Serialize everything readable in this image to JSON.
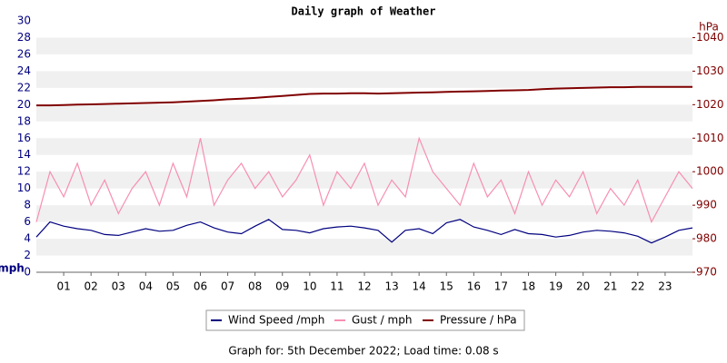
{
  "chart_data": {
    "type": "line",
    "title": "Daily graph of Weather",
    "footer": "Graph for: 5th December 2022; Load time: 0.08 s",
    "ylabel": "mph",
    "y2label": "hPa",
    "x": [
      0,
      0.5,
      1,
      1.5,
      2,
      2.5,
      3,
      3.5,
      4,
      4.5,
      5,
      5.5,
      6,
      6.5,
      7,
      7.5,
      8,
      8.5,
      9,
      9.5,
      10,
      10.5,
      11,
      11.5,
      12,
      12.5,
      13,
      13.5,
      14,
      14.5,
      15,
      15.5,
      16,
      16.5,
      17,
      17.5,
      18,
      18.5,
      19,
      19.5,
      20,
      20.5,
      21,
      21.5,
      22,
      22.5,
      23,
      23.5,
      24
    ],
    "xlim": [
      0,
      24
    ],
    "xticks": [
      {
        "value": 1,
        "label": "01"
      },
      {
        "value": 2,
        "label": "02"
      },
      {
        "value": 3,
        "label": "03"
      },
      {
        "value": 4,
        "label": "04"
      },
      {
        "value": 5,
        "label": "05"
      },
      {
        "value": 6,
        "label": "06"
      },
      {
        "value": 7,
        "label": "07"
      },
      {
        "value": 8,
        "label": "08"
      },
      {
        "value": 9,
        "label": "09"
      },
      {
        "value": 10,
        "label": "10"
      },
      {
        "value": 11,
        "label": "11"
      },
      {
        "value": 12,
        "label": "12"
      },
      {
        "value": 13,
        "label": "13"
      },
      {
        "value": 14,
        "label": "14"
      },
      {
        "value": 15,
        "label": "15"
      },
      {
        "value": 16,
        "label": "16"
      },
      {
        "value": 17,
        "label": "17"
      },
      {
        "value": 18,
        "label": "18"
      },
      {
        "value": 19,
        "label": "19"
      },
      {
        "value": 20,
        "label": "20"
      },
      {
        "value": 21,
        "label": "21"
      },
      {
        "value": 22,
        "label": "22"
      },
      {
        "value": 23,
        "label": "23"
      }
    ],
    "ylim": [
      0,
      30
    ],
    "yticks": [
      0,
      2,
      4,
      6,
      8,
      10,
      12,
      14,
      16,
      18,
      20,
      22,
      24,
      26,
      28,
      30
    ],
    "y2lim": [
      970,
      1045
    ],
    "y2ticks": [
      970,
      980,
      990,
      1000,
      1010,
      1020,
      1030,
      1040
    ],
    "grid": true,
    "series": [
      {
        "name": "Gust / mph",
        "color": "#f78fb0",
        "values": [
          6,
          12,
          9,
          13,
          8,
          11,
          7,
          10,
          12,
          8,
          13,
          9,
          16,
          8,
          11,
          13,
          10,
          12,
          9,
          11,
          14,
          8,
          12,
          10,
          13,
          8,
          11,
          9,
          16,
          12,
          10,
          8,
          13,
          9,
          11,
          7,
          12,
          8,
          11,
          9,
          12,
          7,
          10,
          8,
          11,
          6,
          9,
          12,
          10
        ]
      },
      {
        "name": "Wind Speed /mph",
        "color": "#000080",
        "values": [
          4.2,
          6.0,
          5.5,
          5.2,
          5.0,
          4.5,
          4.4,
          4.8,
          5.2,
          4.9,
          5.0,
          5.6,
          6.0,
          5.3,
          4.8,
          4.6,
          5.5,
          6.3,
          5.1,
          5.0,
          4.7,
          5.2,
          5.4,
          5.5,
          5.3,
          5.0,
          3.6,
          5.0,
          5.2,
          4.6,
          5.9,
          6.3,
          5.4,
          5.0,
          4.5,
          5.1,
          4.6,
          4.5,
          4.2,
          4.4,
          4.8,
          5.0,
          4.9,
          4.7,
          4.3,
          3.5,
          4.2,
          5.0,
          5.3
        ]
      },
      {
        "name": "Pressure / hPa",
        "color": "#800000",
        "axis": "y2",
        "values": [
          1019.8,
          1019.8,
          1019.9,
          1020,
          1020.1,
          1020.2,
          1020.3,
          1020.4,
          1020.5,
          1020.6,
          1020.7,
          1020.9,
          1021.1,
          1021.3,
          1021.6,
          1021.8,
          1022,
          1022.3,
          1022.6,
          1022.9,
          1023.2,
          1023.3,
          1023.3,
          1023.4,
          1023.4,
          1023.3,
          1023.4,
          1023.5,
          1023.6,
          1023.7,
          1023.8,
          1023.9,
          1024.0,
          1024.1,
          1024.2,
          1024.3,
          1024.4,
          1024.6,
          1024.8,
          1024.9,
          1025.0,
          1025.1,
          1025.2,
          1025.2,
          1025.3,
          1025.3,
          1025.3,
          1025.3,
          1025.3
        ]
      }
    ]
  }
}
